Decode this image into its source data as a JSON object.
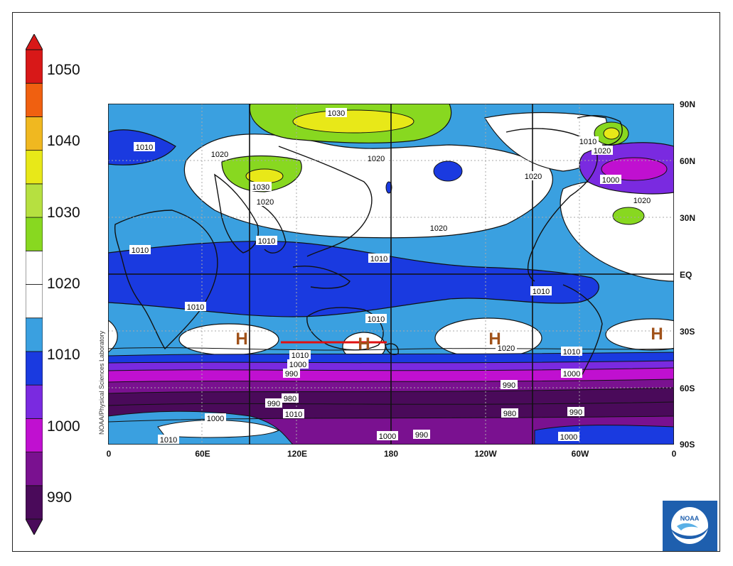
{
  "colorbar": {
    "labels": [
      "1050",
      "1040",
      "1030",
      "1020",
      "1010",
      "1000",
      "990"
    ],
    "colors": [
      "#4a0a5a",
      "#7a1190",
      "#c010d0",
      "#7a2ae0",
      "#1a3ae0",
      "#3aa0e0",
      "#ffffff",
      "#ffffff",
      "#88d820",
      "#b6e040",
      "#e8e818",
      "#f0b820",
      "#f06010",
      "#d81818"
    ]
  },
  "axes": {
    "x_ticks": [
      "0",
      "60E",
      "120E",
      "180",
      "120W",
      "60W",
      "0"
    ],
    "y_ticks": [
      "90N",
      "60N",
      "30N",
      "EQ",
      "30S",
      "60S",
      "90S"
    ]
  },
  "credit": "NOAA/Physical Sciences Laboratory",
  "logo_text": "NOAA",
  "contour_labels": {
    "l1030_top": "1030",
    "l1010_nw": "1010",
    "l1020_asia": "1020",
    "l1020_pacific": "1020",
    "l1010_greenland": "1010",
    "l1020_greenland": "1020",
    "l1030_tibet": "1030",
    "l1020_china": "1020",
    "l1020_na": "1020",
    "l1000_atl": "1000",
    "l1020_atl": "1020",
    "l1020_npac": "1020",
    "l1010_india": "1010",
    "l1010_bay": "1010",
    "l1010_wpac": "1010",
    "l1010_sa": "1010",
    "l1010_africa": "1010",
    "l1010_aus": "1010",
    "l1020_spac": "1020",
    "l1010_sam": "1010",
    "l1010_south": "1010",
    "l1000_south": "1000",
    "l990_south": "990",
    "l980_south": "980",
    "l990_south2": "990",
    "l1010_so": "1010",
    "l1000_so": "1000",
    "l1010_ant": "1010",
    "l1000_ant": "1000",
    "l990_ant": "990",
    "l990_east": "990",
    "l980_east": "980",
    "l990_east2": "990",
    "l1000_east": "1000",
    "l1000_sam": "1000"
  },
  "highs": [
    "H",
    "H",
    "H",
    "H"
  ],
  "colors": {
    "high_marker": "#a0521a",
    "annotation_line": "#e01010"
  }
}
